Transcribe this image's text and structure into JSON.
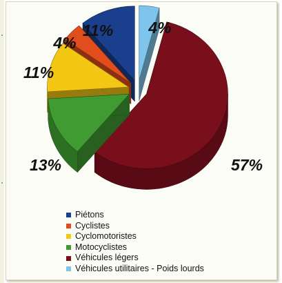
{
  "chart_data": {
    "type": "pie",
    "style": "3d-exploded",
    "title": "",
    "unit": "%",
    "legend_position": "bottom",
    "slices": [
      {
        "name": "Piétons",
        "value": 11,
        "label": "11%",
        "color": "#1a3f8c"
      },
      {
        "name": "Cyclistes",
        "value": 4,
        "label": "4%",
        "color": "#e24d1d"
      },
      {
        "name": "Cyclomotoristes",
        "value": 11,
        "label": "11%",
        "color": "#f5c715"
      },
      {
        "name": "Motocyclistes",
        "value": 13,
        "label": "13%",
        "color": "#3f9b32"
      },
      {
        "name": "Véhicules légers",
        "value": 57,
        "label": "57%",
        "color": "#7a0f1c"
      },
      {
        "name": "Véhicules utilitaires - Poids lourds",
        "value": 4,
        "label": "4%",
        "color": "#7fc4ea"
      }
    ]
  }
}
